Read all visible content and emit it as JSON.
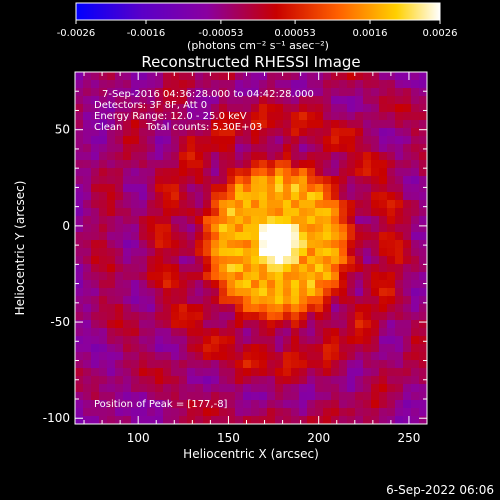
{
  "chart_data": {
    "type": "heatmap",
    "title": "Reconstructed RHESSI Image",
    "xlabel": "Heliocentric X (arcsec)",
    "ylabel": "Heliocentric Y (arcsec)",
    "xlim": [
      65,
      260
    ],
    "ylim": [
      -103,
      80
    ],
    "x_ticks": [
      100,
      150,
      200,
      250
    ],
    "y_ticks": [
      50,
      0,
      -50,
      -100
    ],
    "colorbar": {
      "range": [
        -0.0026,
        0.0026
      ],
      "tick_values": [
        -0.0026,
        -0.0016,
        -0.00053,
        0.00053,
        0.0016,
        0.0026
      ],
      "tick_labels": [
        "-0.0026",
        "-0.0016",
        "-0.00053",
        "0.00053",
        "0.0016",
        "0.0026"
      ],
      "units_label": "(photons cm⁻² s⁻¹ asec⁻²)"
    },
    "annotations": {
      "time_range": "7-Sep-2016 04:36:28.000 to 04:42:28.000",
      "detectors": "Detectors: 3F 8F, Att 0",
      "energy_range": "Energy Range: 12.0 - 25.0 keV",
      "method": "Clean",
      "total_counts": "Total counts: 5.30E+03",
      "peak_position": "Position of Peak = [177,-8]"
    },
    "peak": [
      177,
      -8
    ],
    "timestamp": "6-Sep-2022 06:06",
    "colors": {
      "colormap": [
        "#0000ff",
        "#5a00c8",
        "#8a00a0",
        "#c80000",
        "#ff6000",
        "#ffd000",
        "#ffffff"
      ]
    }
  }
}
